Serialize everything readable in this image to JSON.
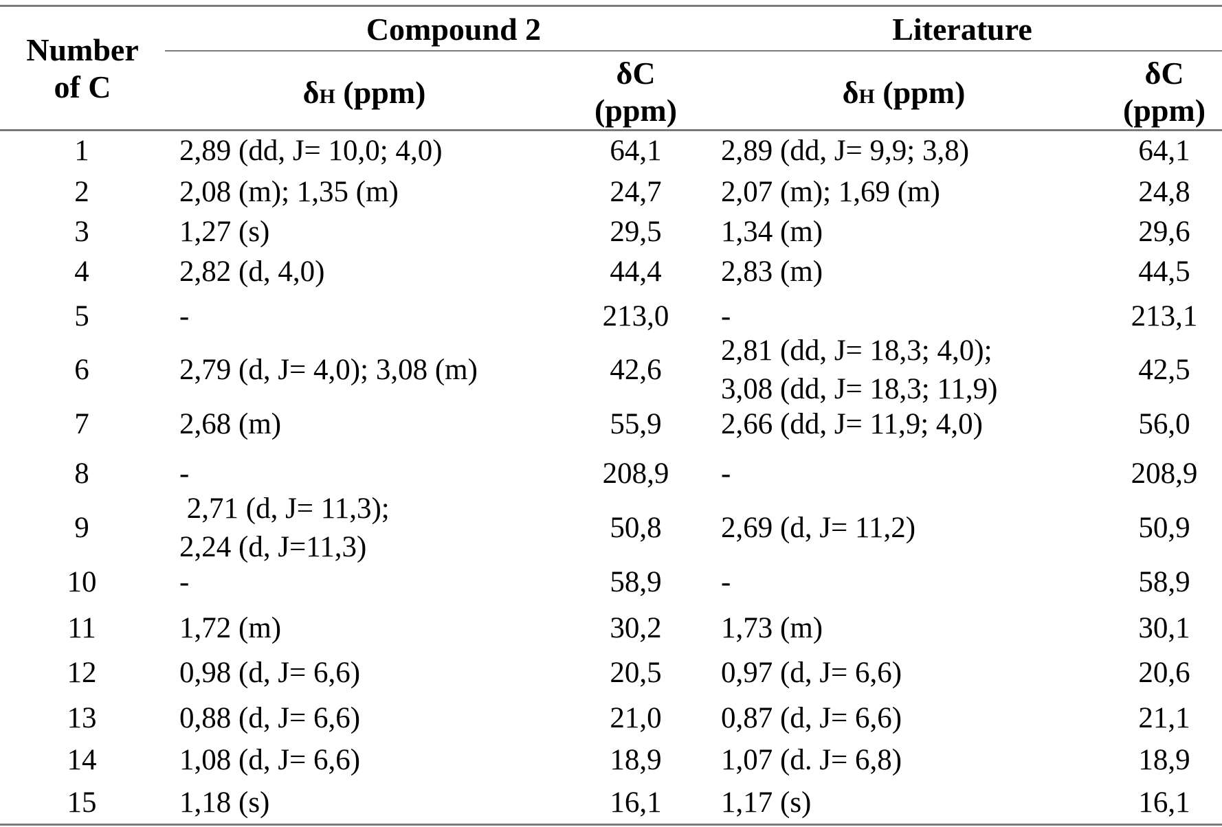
{
  "header": {
    "number_of_c": "Number of C",
    "compound_group": "Compound 2",
    "literature_group": "Literature",
    "delta_h_symbol": "δ",
    "delta_h_sub": "H",
    "delta_h_unit": " (ppm)",
    "delta_c": "δC",
    "delta_c_unit": "(ppm)"
  },
  "rows": [
    {
      "c": "1",
      "h_compound": "2,89 (dd, J= 10,0; 4,0)",
      "c_compound": "64,1",
      "h_literature": "2,89 (dd, J= 9,9; 3,8)",
      "c_literature": "64,1"
    },
    {
      "c": "2",
      "h_compound": "2,08 (m); 1,35 (m)",
      "c_compound": "24,7",
      "h_literature": "2,07 (m); 1,69 (m)",
      "c_literature": "24,8"
    },
    {
      "c": "3",
      "h_compound": "1,27 (s)",
      "c_compound": "29,5",
      "h_literature": "1,34 (m)",
      "c_literature": "29,6"
    },
    {
      "c": "4",
      "h_compound": "2,82 (d, 4,0)",
      "c_compound": "44,4",
      "h_literature": "2,83 (m)",
      "c_literature": "44,5"
    },
    {
      "c": "5",
      "h_compound": "-",
      "c_compound": "213,0",
      "h_literature": "-",
      "c_literature": "213,1"
    },
    {
      "c": "6",
      "h_compound": "2,79 (d, J= 4,0); 3,08 (m)",
      "c_compound": "42,6",
      "h_literature": "2,81 (dd, J= 18,3; 4,0);\n3,08 (dd, J= 18,3; 11,9)",
      "c_literature": "42,5"
    },
    {
      "c": "7",
      "h_compound": "2,68 (m)",
      "c_compound": "55,9",
      "h_literature": "2,66 (dd, J= 11,9; 4,0)",
      "c_literature": "56,0"
    },
    {
      "c": "8",
      "h_compound": "-",
      "c_compound": "208,9",
      "h_literature": "-",
      "c_literature": "208,9"
    },
    {
      "c": "9",
      "h_compound": " 2,71 (d, J= 11,3);\n2,24 (d, J=11,3)",
      "c_compound": "50,8",
      "h_literature": "2,69 (d, J= 11,2)",
      "c_literature": "50,9"
    },
    {
      "c": "10",
      "h_compound": "-",
      "c_compound": "58,9",
      "h_literature": "-",
      "c_literature": "58,9"
    },
    {
      "c": "11",
      "h_compound": "1,72 (m)",
      "c_compound": "30,2",
      "h_literature": "1,73 (m)",
      "c_literature": "30,1"
    },
    {
      "c": "12",
      "h_compound": "0,98 (d, J= 6,6)",
      "c_compound": "20,5",
      "h_literature": "0,97 (d, J= 6,6)",
      "c_literature": "20,6"
    },
    {
      "c": "13",
      "h_compound": "0,88 (d, J= 6,6)",
      "c_compound": "21,0",
      "h_literature": "0,87 (d, J= 6,6)",
      "c_literature": "21,1"
    },
    {
      "c": "14",
      "h_compound": "1,08 (d, J= 6,6)",
      "c_compound": "18,9",
      "h_literature": "1,07 (d. J= 6,8)",
      "c_literature": "18,9"
    },
    {
      "c": "15",
      "h_compound": "1,18 (s)",
      "c_compound": "16,1",
      "h_literature": "1,17 (s)",
      "c_literature": "16,1"
    }
  ]
}
